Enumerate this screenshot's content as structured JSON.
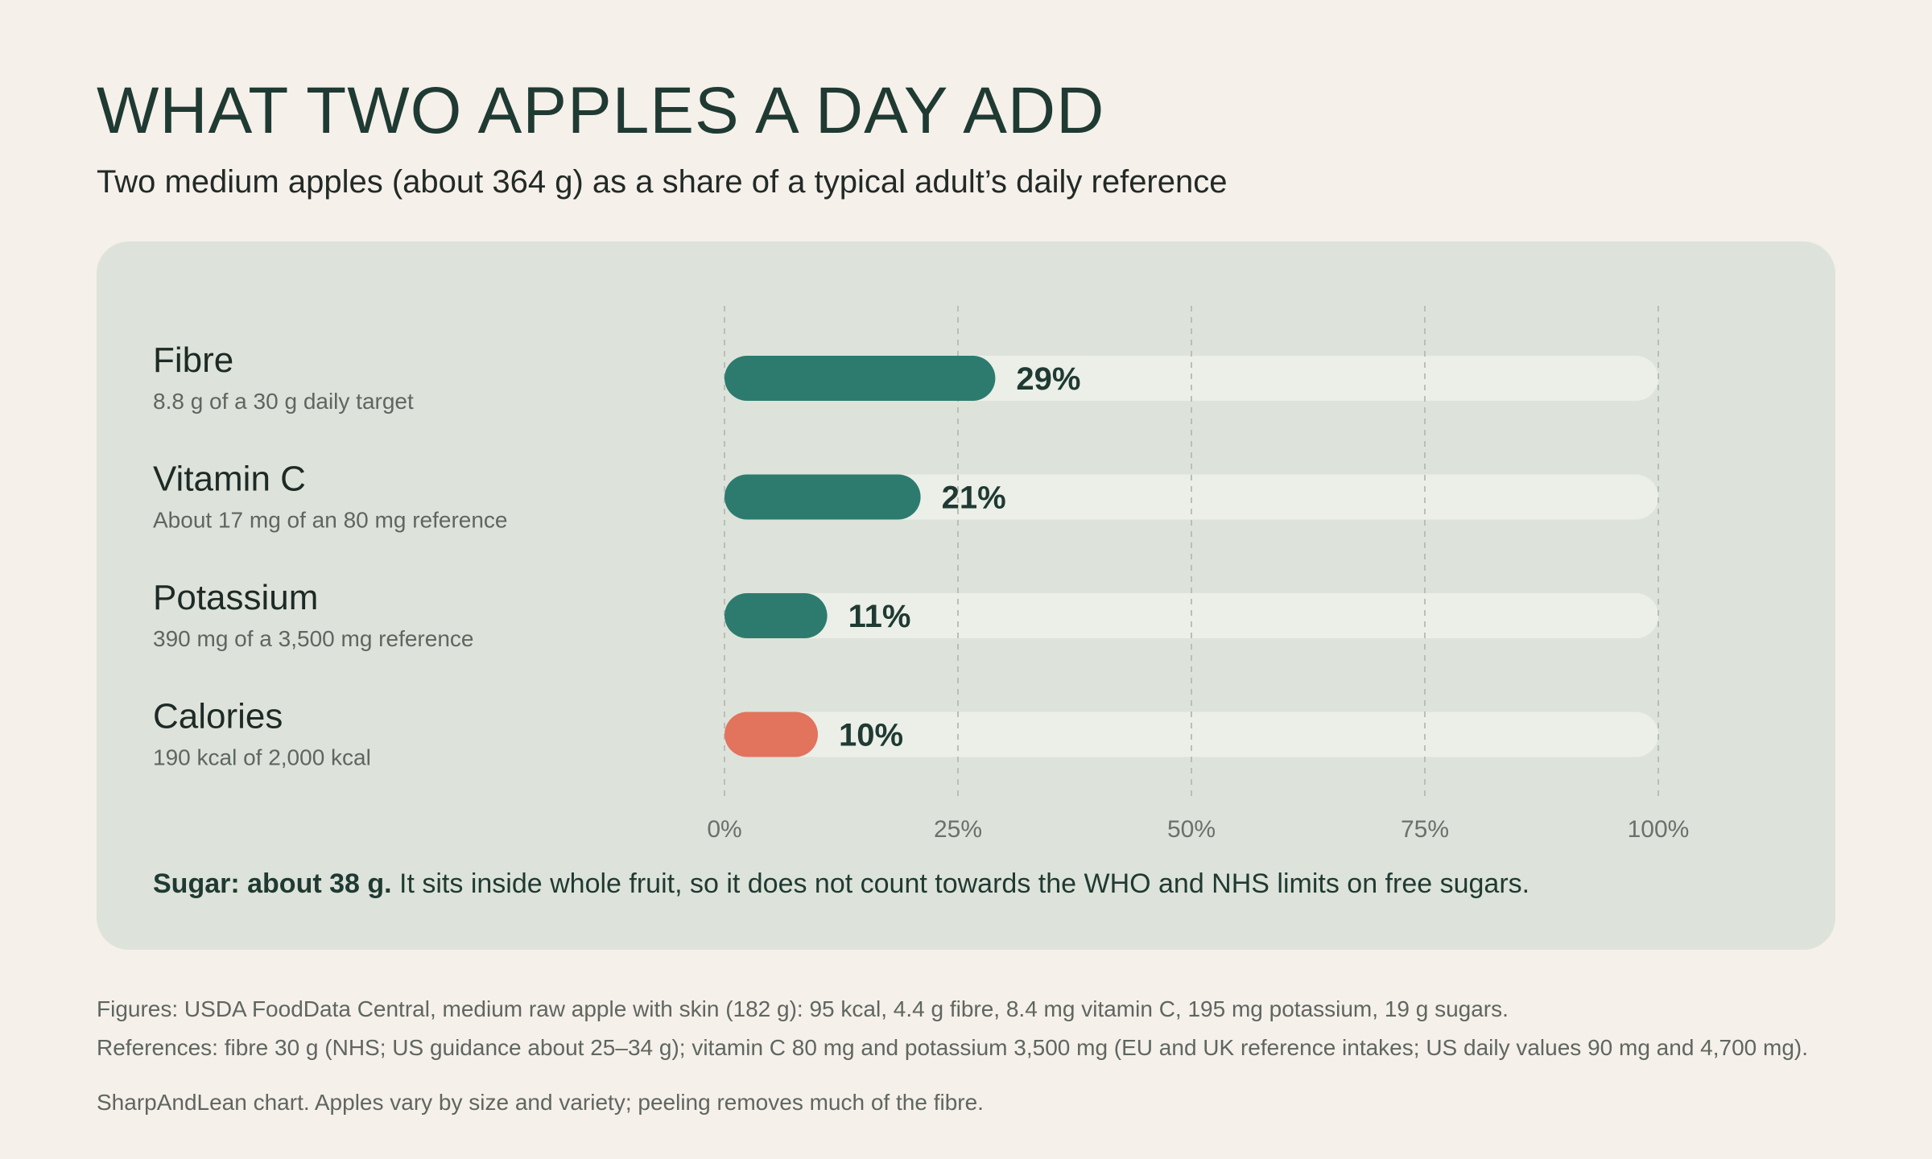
{
  "header": {
    "title": "WHAT TWO APPLES A DAY ADD",
    "subtitle": "Two medium apples (about 364 g) as a share of a typical adult’s daily reference"
  },
  "chart_data": {
    "type": "bar",
    "orientation": "horizontal",
    "categories": [
      "Fibre",
      "Vitamin C",
      "Potassium",
      "Calories"
    ],
    "sublabels": [
      "8.8 g of a 30 g daily target",
      "About 17 mg of an 80 mg reference",
      "390 mg of a 3,500 mg reference",
      "190 kcal of 2,000 kcal"
    ],
    "values": [
      29,
      21,
      11,
      10
    ],
    "value_labels": [
      "29%",
      "21%",
      "11%",
      "10%"
    ],
    "bar_colors": [
      "#2d7b6f",
      "#2d7b6f",
      "#2d7b6f",
      "#e2735c"
    ],
    "track_color": "#ebefe8",
    "xlim": [
      0,
      100
    ],
    "xticks": [
      0,
      25,
      50,
      75,
      100
    ],
    "xtick_labels": [
      "0%",
      "25%",
      "50%",
      "75%",
      "100%"
    ],
    "grid": "vertical dashed"
  },
  "note": {
    "bold": "Sugar: about 38 g.",
    "text": " It sits inside whole fruit, so it does not count towards the WHO and NHS limits on free sugars."
  },
  "footer": {
    "line1": "Figures: USDA FoodData Central, medium raw apple with skin (182 g): 95 kcal, 4.4 g fibre, 8.4 mg vitamin C, 195 mg potassium, 19 g sugars.",
    "line2": "References: fibre 30 g (NHS; US guidance about 25–34 g); vitamin C 80 mg and potassium 3,500 mg (EU and UK reference intakes; US daily values 90 mg and 4,700 mg).",
    "line3": "SharpAndLean chart. Apples vary by size and variety; peeling removes much of the fibre."
  }
}
